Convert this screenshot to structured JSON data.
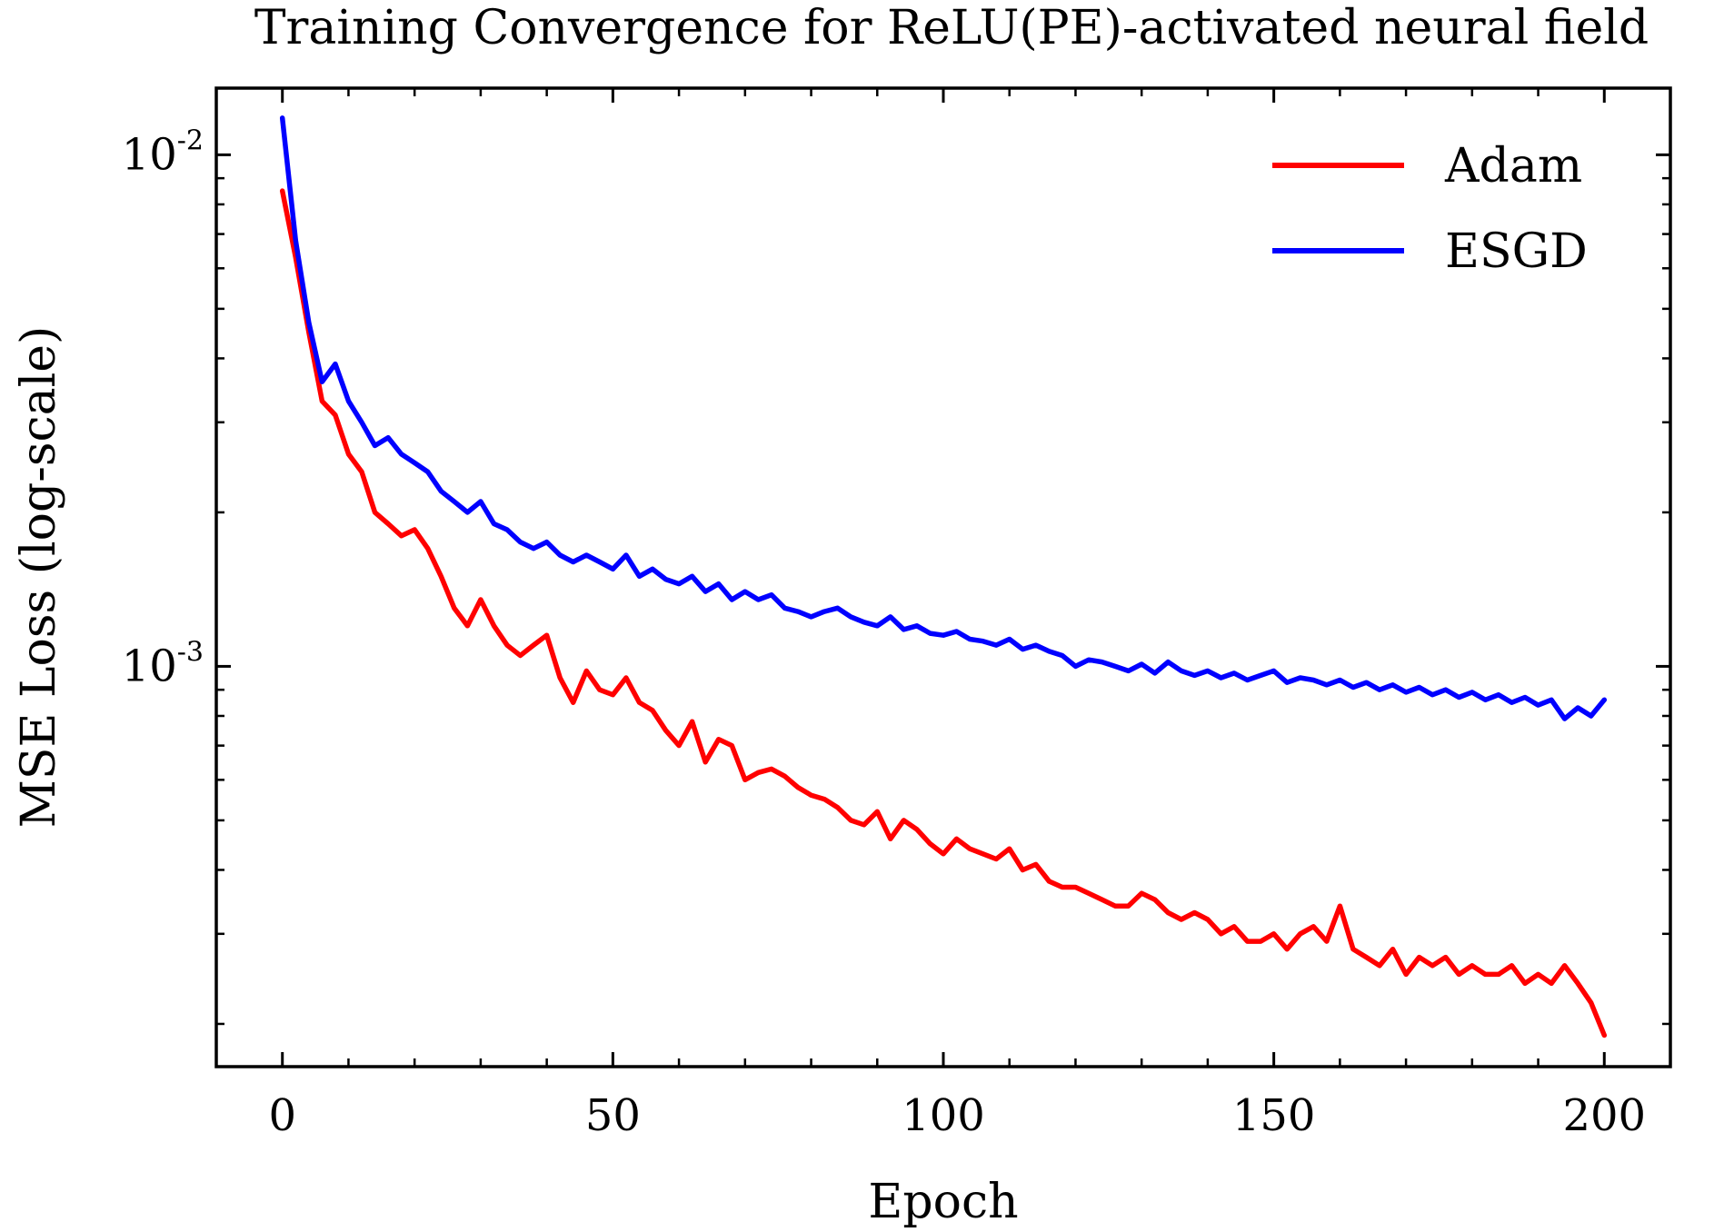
{
  "chart_data": {
    "type": "line",
    "title": "Training Convergence for ReLU(PE)-activated neural field",
    "xlabel": "Epoch",
    "ylabel": "MSE Loss (log-scale)",
    "xlim": [
      -10,
      210
    ],
    "ylim": [
      0.000165,
      0.0135
    ],
    "yscale": "log",
    "xticks": [
      0,
      50,
      100,
      150,
      200
    ],
    "xtick_labels": [
      "0",
      "50",
      "100",
      "150",
      "200"
    ],
    "yticks": [
      {
        "value": 0.01,
        "base": "10",
        "exp": "-2"
      },
      {
        "value": 0.001,
        "base": "10",
        "exp": "-3"
      }
    ],
    "grid": false,
    "legend_position": "top-right",
    "series": [
      {
        "name": "Adam",
        "color": "#ff0000",
        "x": [
          0,
          2,
          4,
          6,
          8,
          10,
          12,
          14,
          16,
          18,
          20,
          22,
          24,
          26,
          28,
          30,
          32,
          34,
          36,
          38,
          40,
          42,
          44,
          46,
          48,
          50,
          52,
          54,
          56,
          58,
          60,
          62,
          64,
          66,
          68,
          70,
          72,
          74,
          76,
          78,
          80,
          82,
          84,
          86,
          88,
          90,
          92,
          94,
          96,
          98,
          100,
          102,
          104,
          106,
          108,
          110,
          112,
          114,
          116,
          118,
          120,
          122,
          124,
          126,
          128,
          130,
          132,
          134,
          136,
          138,
          140,
          142,
          144,
          146,
          148,
          150,
          152,
          154,
          156,
          158,
          160,
          162,
          164,
          166,
          168,
          170,
          172,
          174,
          176,
          178,
          180,
          182,
          184,
          186,
          188,
          190,
          192,
          194,
          196,
          198,
          200
        ],
        "y": [
          0.0085,
          0.0063,
          0.0045,
          0.0033,
          0.0031,
          0.0026,
          0.0024,
          0.002,
          0.0019,
          0.0018,
          0.00185,
          0.0017,
          0.0015,
          0.0013,
          0.0012,
          0.00135,
          0.0012,
          0.0011,
          0.00105,
          0.0011,
          0.00115,
          0.00095,
          0.00085,
          0.00098,
          0.0009,
          0.00088,
          0.00095,
          0.00085,
          0.00082,
          0.00075,
          0.0007,
          0.00078,
          0.00065,
          0.00072,
          0.0007,
          0.0006,
          0.00062,
          0.00063,
          0.00061,
          0.00058,
          0.00056,
          0.00055,
          0.00053,
          0.0005,
          0.00049,
          0.00052,
          0.00046,
          0.0005,
          0.00048,
          0.00045,
          0.00043,
          0.00046,
          0.00044,
          0.00043,
          0.00042,
          0.00044,
          0.0004,
          0.00041,
          0.00038,
          0.00037,
          0.00037,
          0.00036,
          0.00035,
          0.00034,
          0.00034,
          0.00036,
          0.00035,
          0.00033,
          0.00032,
          0.00033,
          0.00032,
          0.0003,
          0.00031,
          0.00029,
          0.00029,
          0.0003,
          0.00028,
          0.0003,
          0.00031,
          0.00029,
          0.00034,
          0.00028,
          0.00027,
          0.00026,
          0.00028,
          0.00025,
          0.00027,
          0.00026,
          0.00027,
          0.00025,
          0.00026,
          0.00025,
          0.00025,
          0.00026,
          0.00024,
          0.00025,
          0.00024,
          0.00026,
          0.00024,
          0.00022,
          0.00019
        ]
      },
      {
        "name": "ESGD",
        "color": "#0000ff",
        "x": [
          0,
          2,
          4,
          6,
          8,
          10,
          12,
          14,
          16,
          18,
          20,
          22,
          24,
          26,
          28,
          30,
          32,
          34,
          36,
          38,
          40,
          42,
          44,
          46,
          48,
          50,
          52,
          54,
          56,
          58,
          60,
          62,
          64,
          66,
          68,
          70,
          72,
          74,
          76,
          78,
          80,
          82,
          84,
          86,
          88,
          90,
          92,
          94,
          96,
          98,
          100,
          102,
          104,
          106,
          108,
          110,
          112,
          114,
          116,
          118,
          120,
          122,
          124,
          126,
          128,
          130,
          132,
          134,
          136,
          138,
          140,
          142,
          144,
          146,
          148,
          150,
          152,
          154,
          156,
          158,
          160,
          162,
          164,
          166,
          168,
          170,
          172,
          174,
          176,
          178,
          180,
          182,
          184,
          186,
          188,
          190,
          192,
          194,
          196,
          198,
          200
        ],
        "y": [
          0.0118,
          0.0068,
          0.0047,
          0.0036,
          0.0039,
          0.0033,
          0.003,
          0.0027,
          0.0028,
          0.0026,
          0.0025,
          0.0024,
          0.0022,
          0.0021,
          0.002,
          0.0021,
          0.0019,
          0.00185,
          0.00175,
          0.0017,
          0.00175,
          0.00165,
          0.0016,
          0.00165,
          0.0016,
          0.00155,
          0.00165,
          0.0015,
          0.00155,
          0.00148,
          0.00145,
          0.0015,
          0.0014,
          0.00145,
          0.00135,
          0.0014,
          0.00135,
          0.00138,
          0.0013,
          0.00128,
          0.00125,
          0.00128,
          0.0013,
          0.00125,
          0.00122,
          0.0012,
          0.00125,
          0.00118,
          0.0012,
          0.00116,
          0.00115,
          0.00117,
          0.00113,
          0.00112,
          0.0011,
          0.00113,
          0.00108,
          0.0011,
          0.00107,
          0.00105,
          0.001,
          0.00103,
          0.00102,
          0.001,
          0.00098,
          0.00101,
          0.00097,
          0.00102,
          0.00098,
          0.00096,
          0.00098,
          0.00095,
          0.00097,
          0.00094,
          0.00096,
          0.00098,
          0.00093,
          0.00095,
          0.00094,
          0.00092,
          0.00094,
          0.00091,
          0.00093,
          0.0009,
          0.00092,
          0.00089,
          0.00091,
          0.00088,
          0.0009,
          0.00087,
          0.00089,
          0.00086,
          0.00088,
          0.00085,
          0.00087,
          0.00084,
          0.00086,
          0.00079,
          0.00083,
          0.0008,
          0.00086
        ]
      }
    ]
  }
}
